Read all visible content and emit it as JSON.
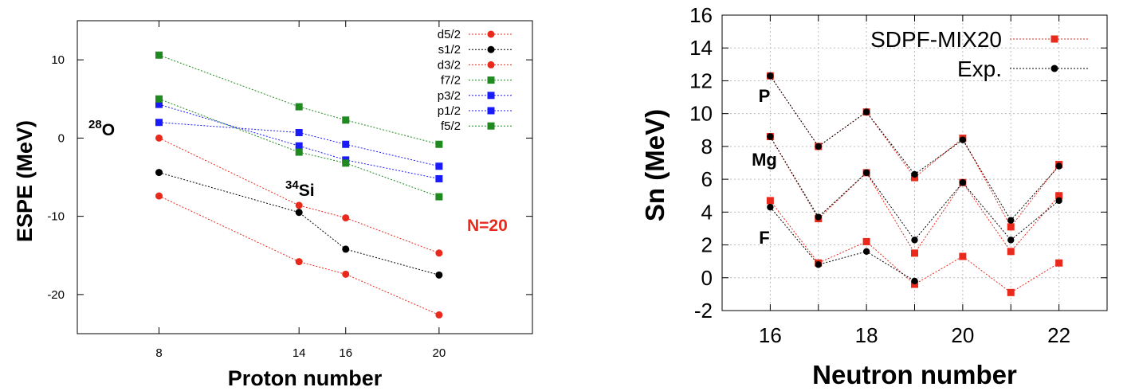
{
  "chart_data": [
    {
      "type": "line",
      "title": "",
      "xlabel": "Proton number",
      "ylabel": "ESPE (MeV)",
      "xlim": [
        4.5,
        24
      ],
      "ylim": [
        -25,
        15
      ],
      "xticks": [
        8,
        14,
        16,
        20
      ],
      "yticks": [
        -20,
        -10,
        0,
        10
      ],
      "grid": false,
      "legend_position": "top-right",
      "x": [
        8,
        14,
        16,
        20
      ],
      "series": [
        {
          "name": "d5/2",
          "color": "#e8291c",
          "marker": "circle",
          "values": [
            -7.4,
            -15.8,
            -17.4,
            -22.6
          ]
        },
        {
          "name": "s1/2",
          "color": "#000000",
          "marker": "circle",
          "values": [
            -4.4,
            -9.5,
            -14.2,
            -17.5
          ]
        },
        {
          "name": "d3/2",
          "color": "#e8291c",
          "marker": "circle",
          "values": [
            0.0,
            -8.6,
            -10.2,
            -14.7
          ]
        },
        {
          "name": "f7/2",
          "color": "#1f8a1f",
          "marker": "square",
          "values": [
            10.6,
            4.0,
            2.3,
            -0.8
          ]
        },
        {
          "name": "p3/2",
          "color": "#1a1aff",
          "marker": "square",
          "values": [
            4.3,
            -1.0,
            -2.8,
            -5.2
          ]
        },
        {
          "name": "p1/2",
          "color": "#1a1aff",
          "marker": "square",
          "values": [
            2.0,
            0.7,
            -0.8,
            -3.6
          ]
        },
        {
          "name": "f5/2",
          "color": "#1f8a1f",
          "marker": "square",
          "values": [
            5.0,
            -1.8,
            -3.2,
            -7.5
          ]
        }
      ],
      "annotations": [
        {
          "mass": "28",
          "element": "O"
        },
        {
          "mass": "34",
          "element": "Si"
        },
        {
          "text": "N=20",
          "color": "#e8291c"
        }
      ]
    },
    {
      "type": "line",
      "title": "",
      "xlabel": "Neutron number",
      "ylabel": "Sn (MeV)",
      "xlim": [
        15,
        23
      ],
      "ylim": [
        -2,
        16
      ],
      "xticks": [
        16,
        18,
        20,
        22
      ],
      "yticks": [
        -2,
        0,
        2,
        4,
        6,
        8,
        10,
        12,
        14,
        16
      ],
      "grid": true,
      "legend_position": "top-right",
      "x": [
        16,
        17,
        18,
        19,
        20,
        21,
        22
      ],
      "series": [
        {
          "name": "SDPF-MIX20",
          "color": "#e8291c",
          "marker": "square",
          "groups": [
            {
              "label": "P",
              "values": [
                12.3,
                8.0,
                10.1,
                6.1,
                8.5,
                3.1,
                6.9
              ]
            },
            {
              "label": "Mg",
              "values": [
                8.6,
                3.6,
                6.4,
                1.5,
                5.8,
                1.6,
                5.0
              ]
            },
            {
              "label": "F",
              "values": [
                4.7,
                0.9,
                2.2,
                -0.4,
                1.3,
                -0.9,
                0.9
              ]
            }
          ]
        },
        {
          "name": "Exp.",
          "color": "#000000",
          "marker": "circle",
          "groups": [
            {
              "label": "P",
              "values": [
                12.3,
                8.0,
                10.1,
                6.3,
                8.4,
                3.5,
                6.8
              ]
            },
            {
              "label": "Mg",
              "values": [
                8.6,
                3.7,
                6.4,
                2.3,
                5.8,
                2.3,
                4.7
              ]
            },
            {
              "label": "F",
              "values": [
                4.3,
                0.8,
                1.6,
                -0.2,
                null,
                null,
                null
              ]
            }
          ]
        }
      ]
    }
  ]
}
